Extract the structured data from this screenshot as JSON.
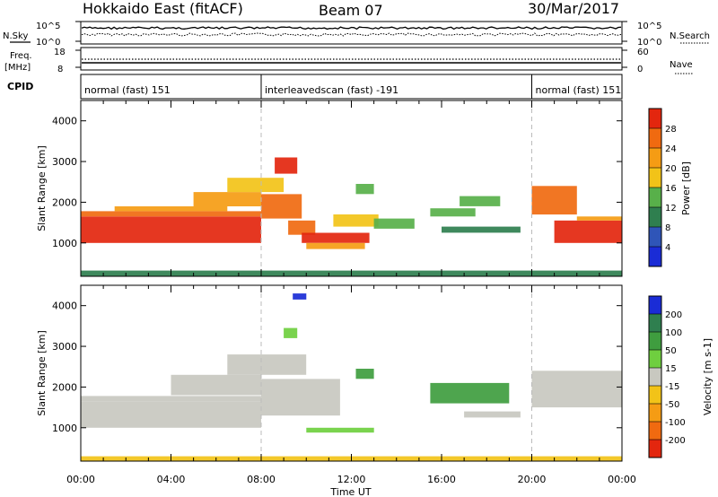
{
  "header": {
    "station": "Hokkaido East (fitACF)",
    "beam": "Beam 07",
    "date": "30/Mar/2017"
  },
  "left_labels": {
    "nsky": "N.Sky",
    "freq": "Freq.",
    "freq_unit": "[MHz]",
    "cpid": "CPID"
  },
  "right_labels": {
    "nsearch": "N.Search",
    "nave": "Nave"
  },
  "noise_panel": {
    "left_ticks": [
      "10^5",
      "10^0"
    ],
    "right_ticks": [
      "10^5",
      "10^0"
    ]
  },
  "freq_panel": {
    "left_ticks": [
      "18",
      "8"
    ],
    "right_ticks": [
      "60",
      "0"
    ]
  },
  "cpid_segments": [
    {
      "label": "normal (fast) 151",
      "start_h": 0,
      "end_h": 8
    },
    {
      "label": "interleavedscan (fast) -191",
      "start_h": 8,
      "end_h": 20
    },
    {
      "label": "normal (fast) 151",
      "start_h": 20,
      "end_h": 24
    }
  ],
  "x_axis": {
    "label": "Time UT",
    "range_h": [
      0,
      24
    ],
    "ticks": [
      {
        "h": 0,
        "label": "00:00"
      },
      {
        "h": 4,
        "label": "04:00"
      },
      {
        "h": 8,
        "label": "08:00"
      },
      {
        "h": 12,
        "label": "12:00"
      },
      {
        "h": 16,
        "label": "16:00"
      },
      {
        "h": 20,
        "label": "20:00"
      },
      {
        "h": 24,
        "label": "00:00"
      }
    ]
  },
  "chart_data": [
    {
      "type": "heatmap",
      "ylabel": "Slant Range [km]",
      "ylim": [
        180,
        4500
      ],
      "yticks": [
        1000,
        2000,
        3000,
        4000
      ],
      "colorbar": {
        "label": "Power [dB]",
        "ticks": [
          "4",
          "8",
          "12",
          "16",
          "20",
          "24",
          "28"
        ],
        "colors": [
          "#1a2cd6",
          "#2f55b8",
          "#2f7f4f",
          "#58b04a",
          "#f2c318",
          "#f59c14",
          "#f06a10",
          "#e3260e"
        ]
      },
      "regions": [
        {
          "t0": 0.0,
          "t1": 8.0,
          "r0": 1000,
          "r1": 1650,
          "c": 7
        },
        {
          "t0": 0.0,
          "t1": 8.0,
          "r0": 1650,
          "r1": 1780,
          "c": 6
        },
        {
          "t0": 1.5,
          "t1": 6.5,
          "r0": 1780,
          "r1": 1900,
          "c": 5
        },
        {
          "t0": 5.0,
          "t1": 8.0,
          "r0": 1900,
          "r1": 2250,
          "c": 5
        },
        {
          "t0": 6.5,
          "t1": 9.0,
          "r0": 2250,
          "r1": 2600,
          "c": 4
        },
        {
          "t0": 8.0,
          "t1": 9.8,
          "r0": 1600,
          "r1": 2200,
          "c": 6
        },
        {
          "t0": 8.6,
          "t1": 9.6,
          "r0": 2700,
          "r1": 3100,
          "c": 7
        },
        {
          "t0": 9.2,
          "t1": 10.4,
          "r0": 1200,
          "r1": 1550,
          "c": 6
        },
        {
          "t0": 9.8,
          "t1": 12.8,
          "r0": 1000,
          "r1": 1250,
          "c": 7
        },
        {
          "t0": 10.0,
          "t1": 12.6,
          "r0": 850,
          "r1": 1000,
          "c": 5
        },
        {
          "t0": 11.2,
          "t1": 13.2,
          "r0": 1400,
          "r1": 1700,
          "c": 4
        },
        {
          "t0": 12.2,
          "t1": 13.0,
          "r0": 2200,
          "r1": 2450,
          "c": 3
        },
        {
          "t0": 13.0,
          "t1": 14.8,
          "r0": 1350,
          "r1": 1600,
          "c": 3
        },
        {
          "t0": 15.5,
          "t1": 17.5,
          "r0": 1650,
          "r1": 1850,
          "c": 3
        },
        {
          "t0": 16.8,
          "t1": 18.6,
          "r0": 1900,
          "r1": 2150,
          "c": 3
        },
        {
          "t0": 16.0,
          "t1": 19.5,
          "r0": 1250,
          "r1": 1400,
          "c": 2
        },
        {
          "t0": 20.0,
          "t1": 22.0,
          "r0": 1700,
          "r1": 2400,
          "c": 6
        },
        {
          "t0": 21.0,
          "t1": 24.0,
          "r0": 1000,
          "r1": 1550,
          "c": 7
        },
        {
          "t0": 22.0,
          "t1": 24.0,
          "r0": 1550,
          "r1": 1650,
          "c": 5
        },
        {
          "t0": 0.0,
          "t1": 24.0,
          "r0": 180,
          "r1": 320,
          "c": 2
        }
      ]
    },
    {
      "type": "heatmap",
      "ylabel": "Slant Range [km]",
      "ylim": [
        180,
        4500
      ],
      "yticks": [
        1000,
        2000,
        3000,
        4000
      ],
      "colorbar": {
        "label": "Velocity [m s-1]",
        "ticks": [
          "200",
          "100",
          "50",
          "15",
          "-15",
          "-50",
          "-100",
          "-200"
        ],
        "colors": [
          "#1a2cd6",
          "#2f7f4f",
          "#3f9d3f",
          "#6fcf3f",
          "#c8c8c0",
          "#f2c318",
          "#f59c14",
          "#f06a10",
          "#e3260e"
        ]
      },
      "regions": [
        {
          "t0": 0.0,
          "t1": 8.0,
          "r0": 1000,
          "r1": 1650,
          "c": 4
        },
        {
          "t0": 0.0,
          "t1": 8.0,
          "r0": 1650,
          "r1": 1780,
          "c": 4
        },
        {
          "t0": 4.0,
          "t1": 8.0,
          "r0": 1800,
          "r1": 2300,
          "c": 4
        },
        {
          "t0": 6.5,
          "t1": 10.0,
          "r0": 2300,
          "r1": 2800,
          "c": 4
        },
        {
          "t0": 8.0,
          "t1": 11.5,
          "r0": 1300,
          "r1": 2200,
          "c": 4
        },
        {
          "t0": 9.0,
          "t1": 9.6,
          "r0": 3200,
          "r1": 3450,
          "c": 3
        },
        {
          "t0": 9.4,
          "t1": 10.0,
          "r0": 4150,
          "r1": 4300,
          "c": 0
        },
        {
          "t0": 10.0,
          "t1": 13.0,
          "r0": 880,
          "r1": 1000,
          "c": 3
        },
        {
          "t0": 12.2,
          "t1": 13.0,
          "r0": 2200,
          "r1": 2450,
          "c": 2
        },
        {
          "t0": 15.5,
          "t1": 19.0,
          "r0": 1600,
          "r1": 2100,
          "c": 2
        },
        {
          "t0": 17.0,
          "t1": 19.5,
          "r0": 1250,
          "r1": 1400,
          "c": 4
        },
        {
          "t0": 20.0,
          "t1": 24.0,
          "r0": 1500,
          "r1": 2400,
          "c": 4
        },
        {
          "t0": 0.0,
          "t1": 24.0,
          "r0": 180,
          "r1": 300,
          "c": 5
        }
      ]
    }
  ]
}
